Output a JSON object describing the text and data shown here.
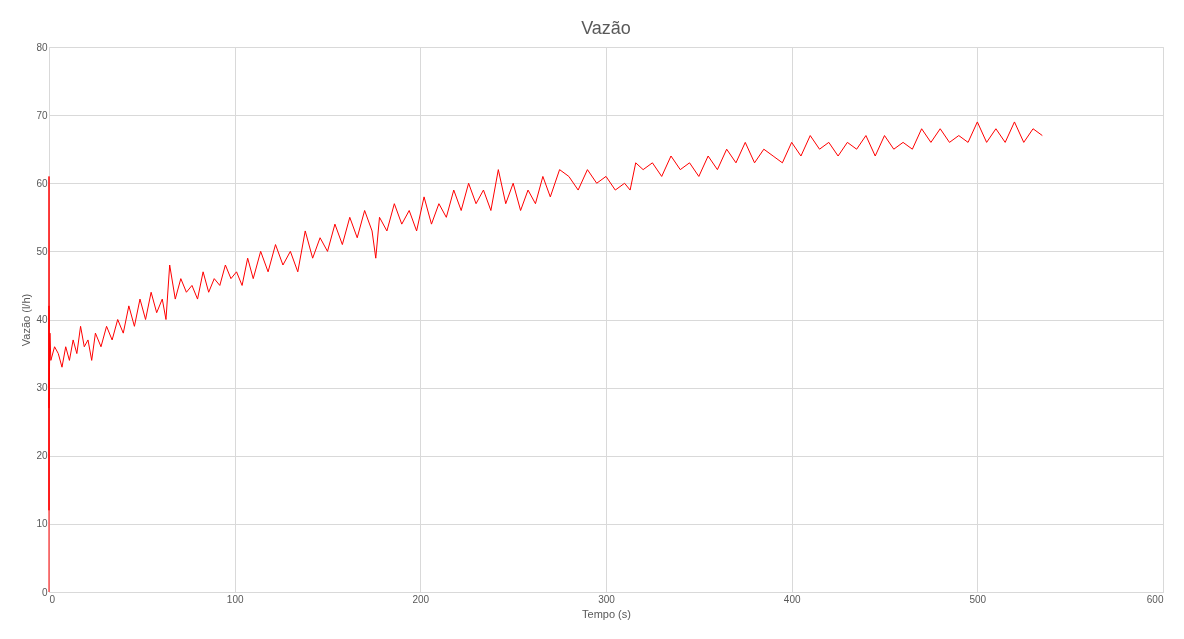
{
  "chart_data": {
    "type": "line",
    "title": "Vazão",
    "xlabel": "Tempo (s)",
    "ylabel": "Vazão (l/h)",
    "x": [
      0,
      0,
      0,
      0,
      0,
      0.5,
      1,
      3,
      5,
      7,
      9,
      11,
      13,
      15,
      17,
      19,
      21,
      23,
      25,
      28,
      31,
      34,
      37,
      40,
      43,
      46,
      49,
      52,
      55,
      58,
      61,
      63,
      65,
      68,
      71,
      74,
      77,
      80,
      83,
      86,
      89,
      92,
      95,
      98,
      101,
      104,
      107,
      110,
      114,
      118,
      122,
      126,
      130,
      134,
      138,
      142,
      146,
      150,
      154,
      158,
      162,
      166,
      170,
      174,
      176,
      178,
      182,
      186,
      190,
      194,
      198,
      202,
      206,
      210,
      214,
      218,
      222,
      226,
      230,
      234,
      238,
      242,
      246,
      250,
      254,
      258,
      262,
      266,
      270,
      275,
      280,
      285,
      290,
      295,
      300,
      305,
      310,
      313,
      316,
      320,
      325,
      330,
      335,
      340,
      345,
      350,
      355,
      360,
      365,
      370,
      375,
      380,
      385,
      390,
      395,
      400,
      405,
      410,
      415,
      420,
      425,
      430,
      435,
      440,
      445,
      450,
      455,
      460,
      465,
      470,
      475,
      480,
      485,
      490,
      495,
      500,
      505,
      510,
      515,
      520,
      525,
      530,
      535
    ],
    "series": [
      {
        "color": "#ff0000",
        "values": [
          0,
          61,
          12,
          42,
          27,
          38,
          34,
          36,
          35,
          33,
          36,
          34,
          37,
          35,
          39,
          36,
          37,
          34,
          38,
          36,
          39,
          37,
          40,
          38,
          42,
          39,
          43,
          40,
          44,
          41,
          43,
          40,
          48,
          43,
          46,
          44,
          45,
          43,
          47,
          44,
          46,
          45,
          48,
          46,
          47,
          45,
          49,
          46,
          50,
          47,
          51,
          48,
          50,
          47,
          53,
          49,
          52,
          50,
          54,
          51,
          55,
          52,
          56,
          53,
          49,
          55,
          53,
          57,
          54,
          56,
          53,
          58,
          54,
          57,
          55,
          59,
          56,
          60,
          57,
          59,
          56,
          62,
          57,
          60,
          56,
          59,
          57,
          61,
          58,
          62,
          61,
          59,
          62,
          60,
          61,
          59,
          60,
          59,
          63,
          62,
          63,
          61,
          64,
          62,
          63,
          61,
          64,
          62,
          65,
          63,
          66,
          63,
          65,
          64,
          63,
          66,
          64,
          67,
          65,
          66,
          64,
          66,
          65,
          67,
          64,
          67,
          65,
          66,
          65,
          68,
          66,
          68,
          66,
          67,
          66,
          69,
          66,
          68,
          66,
          69,
          66,
          68,
          67
        ]
      }
    ],
    "xlim": [
      0,
      600
    ],
    "xticks": [
      0,
      100,
      200,
      300,
      400,
      500,
      600
    ],
    "ylim": [
      0,
      80
    ],
    "yticks": [
      0,
      10,
      20,
      30,
      40,
      50,
      60,
      70,
      80
    ],
    "grid": true,
    "marker": "none",
    "line_style": "solid"
  }
}
